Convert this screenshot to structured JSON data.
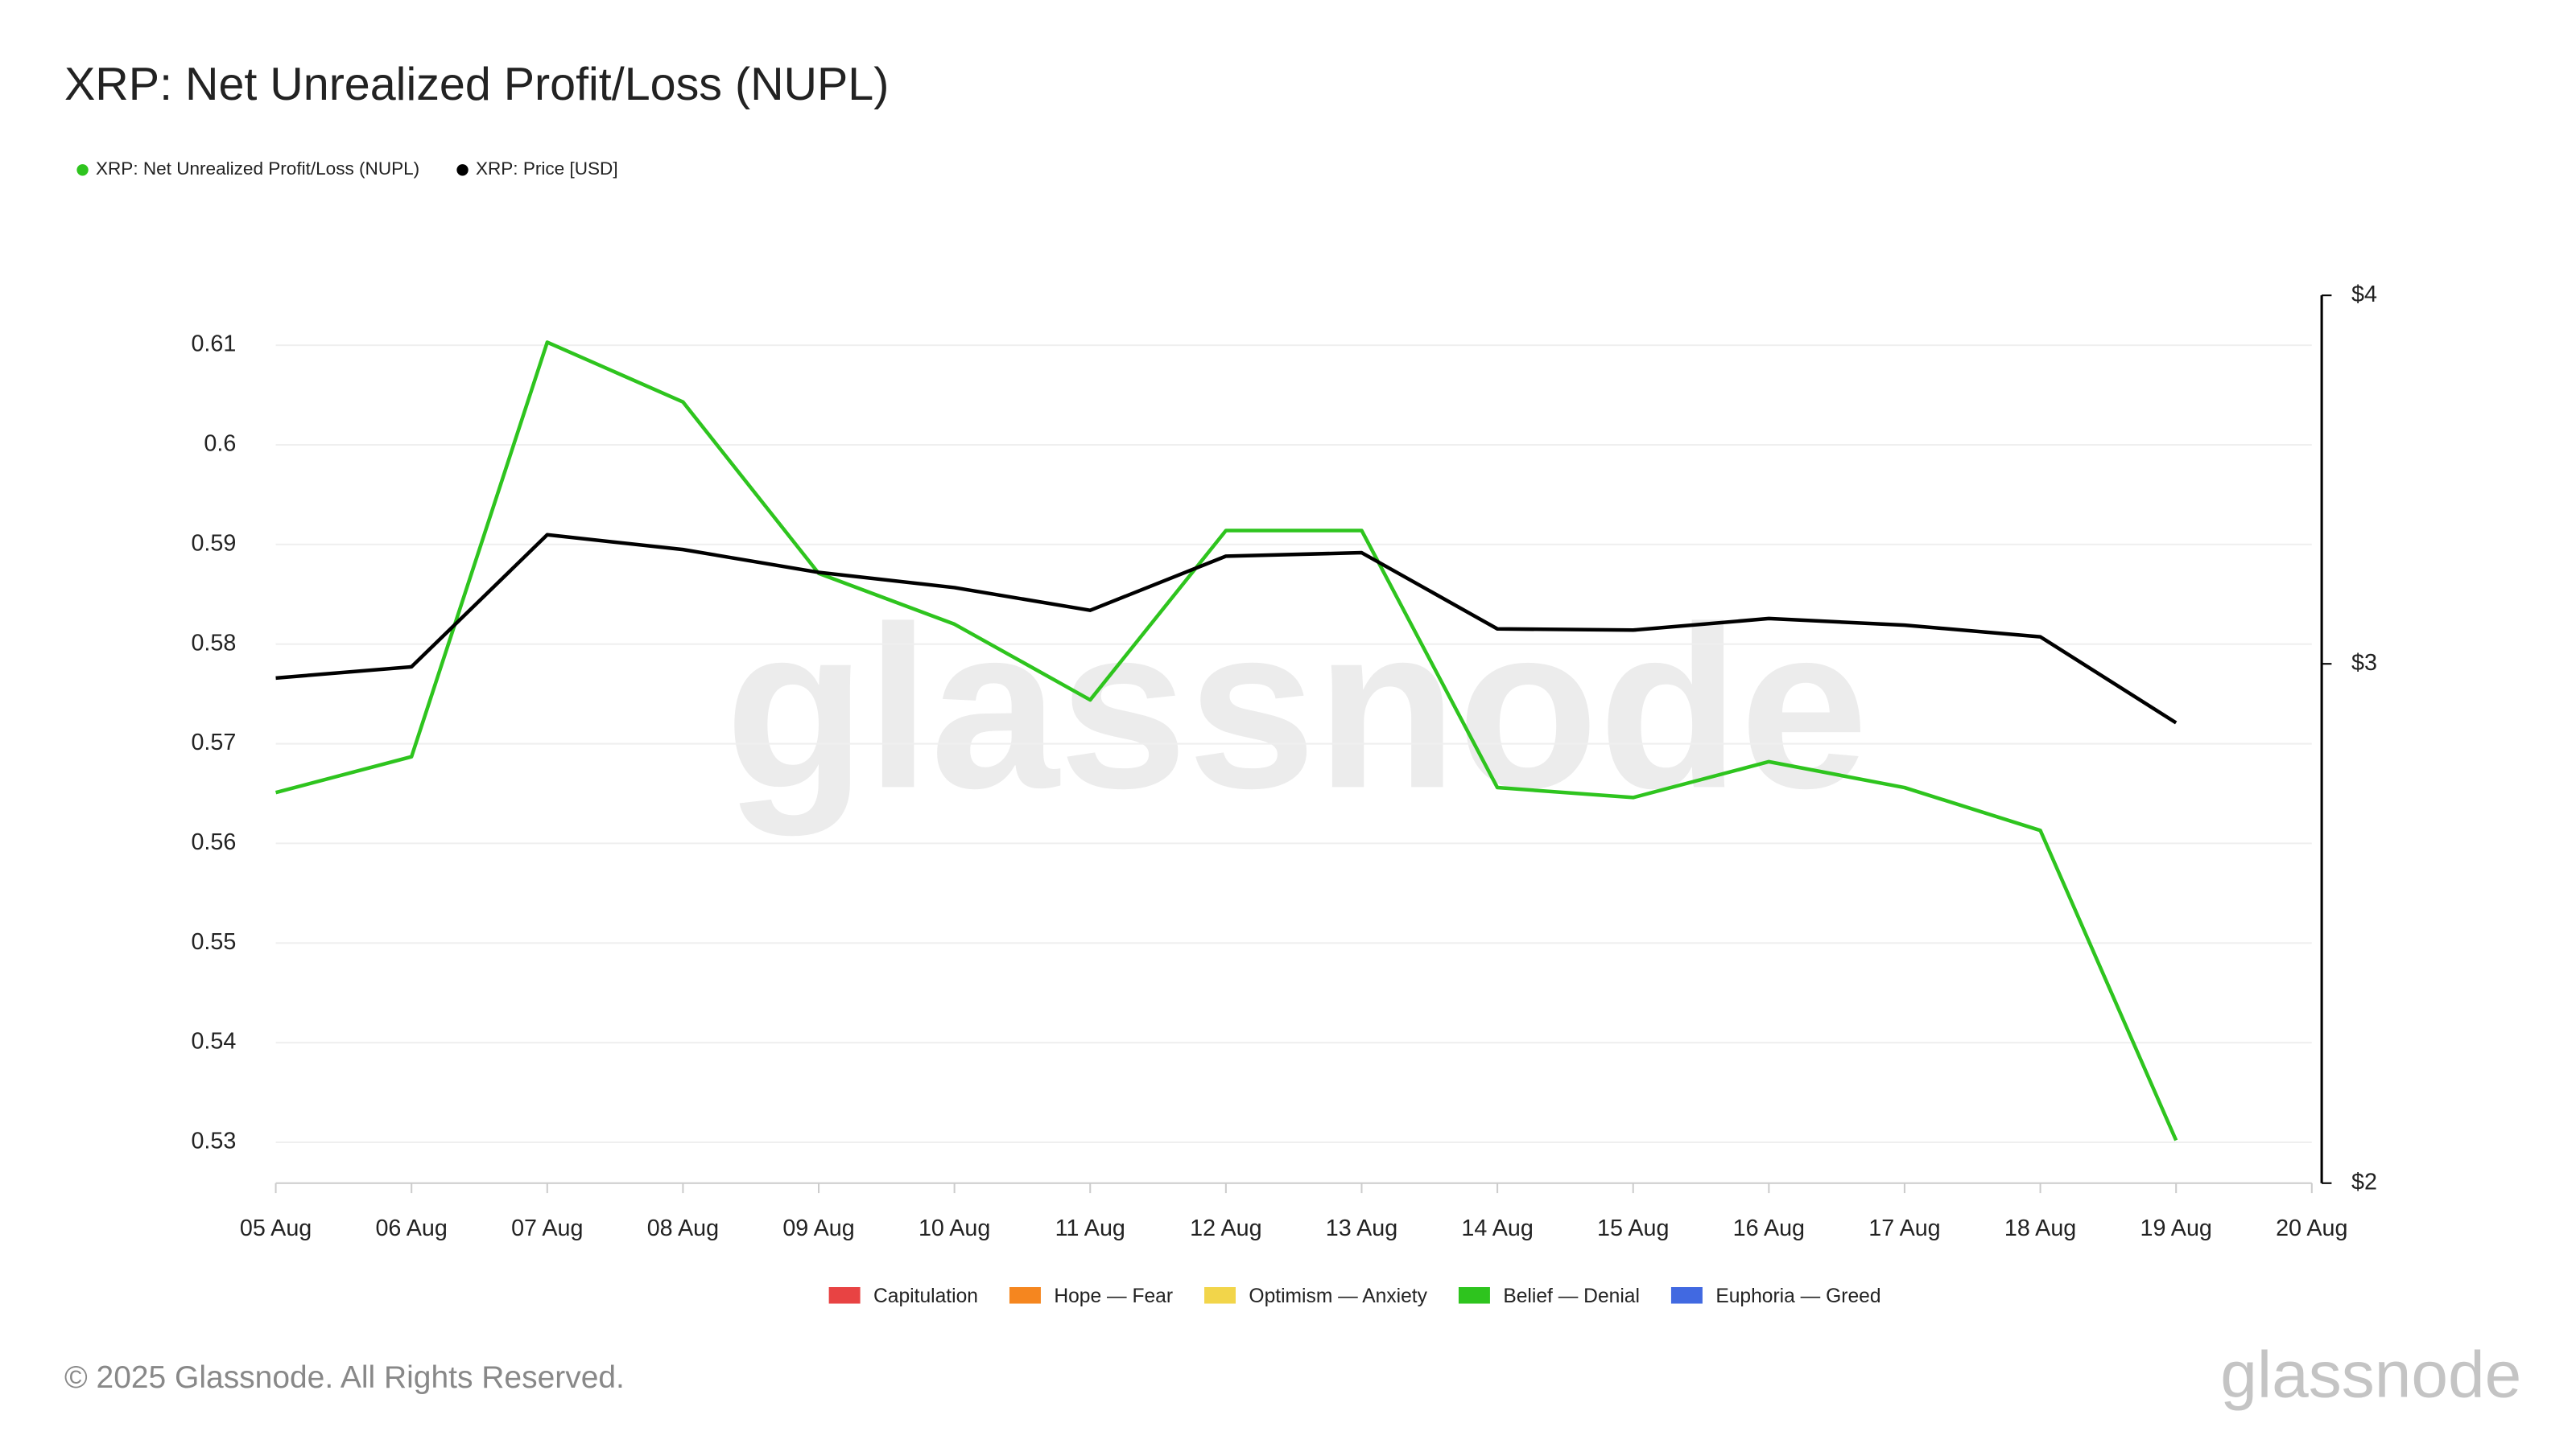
{
  "chart_data": {
    "type": "line",
    "title": "XRP: Net Unrealized Profit/Loss (NUPL)",
    "categories": [
      "05 Aug",
      "06 Aug",
      "07 Aug",
      "08 Aug",
      "09 Aug",
      "10 Aug",
      "11 Aug",
      "12 Aug",
      "13 Aug",
      "14 Aug",
      "15 Aug",
      "16 Aug",
      "17 Aug",
      "18 Aug",
      "19 Aug",
      "20 Aug"
    ],
    "series": [
      {
        "name": "XRP: Net Unrealized Profit/Loss (NUPL)",
        "color": "#2ec41e",
        "axis": "y",
        "values": [
          0.5651,
          0.5687,
          0.6103,
          0.6043,
          0.5871,
          0.582,
          0.5744,
          0.5914,
          0.5914,
          0.5656,
          0.5646,
          0.5682,
          0.5656,
          0.5613,
          0.5302,
          null
        ]
      },
      {
        "name": "XRP: Price [USD]",
        "color": "#000000",
        "axis": "y2",
        "values": [
          2.967,
          2.993,
          3.318,
          3.28,
          3.222,
          3.184,
          3.128,
          3.263,
          3.272,
          3.083,
          3.08,
          3.108,
          3.092,
          3.064,
          2.865,
          null
        ]
      }
    ],
    "ylim": [
      0.5259,
      0.615
    ],
    "yticks": [
      0.53,
      0.54,
      0.55,
      0.56,
      0.57,
      0.58,
      0.59,
      0.6,
      0.61
    ],
    "y2lim": [
      2,
      4
    ],
    "y2ticks": [
      {
        "value": 2,
        "label": "$2"
      },
      {
        "value": 3,
        "label": "$3"
      },
      {
        "value": 4,
        "label": "$4"
      }
    ],
    "y2log": true,
    "grid": true,
    "zones": [
      {
        "name": "Capitulation",
        "color": "#e84343"
      },
      {
        "name": "Hope — Fear",
        "color": "#f5861f"
      },
      {
        "name": "Optimism — Anxiety",
        "color": "#f2d54a"
      },
      {
        "name": "Belief — Denial",
        "color": "#2ec41e"
      },
      {
        "name": "Euphoria — Greed",
        "color": "#4169e1"
      }
    ],
    "watermark": "glassnode",
    "footer": "© 2025 Glassnode. All Rights Reserved."
  }
}
